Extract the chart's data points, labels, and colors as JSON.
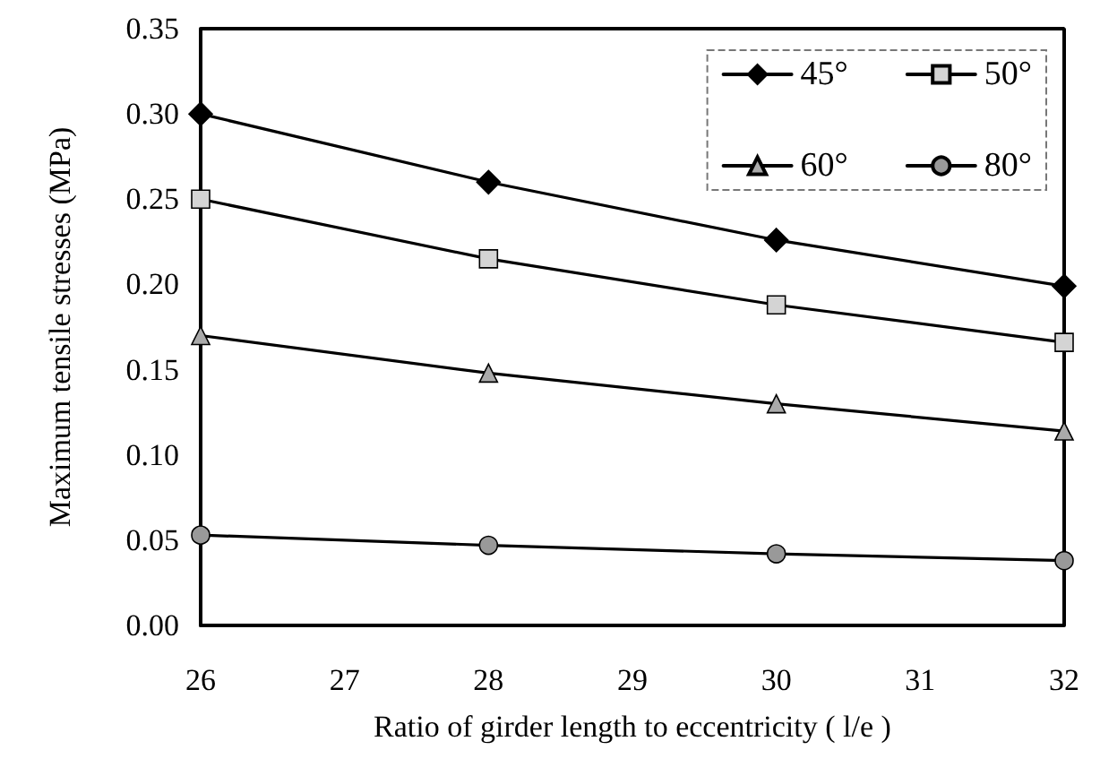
{
  "chart_data": {
    "type": "line",
    "xlabel": "Ratio of girder length to eccentricity ( l/e )",
    "ylabel": "Maximum tensile stresses (MPa)",
    "x": [
      26,
      28,
      30,
      32
    ],
    "xlim": [
      26,
      32
    ],
    "xticks": [
      26,
      27,
      28,
      29,
      30,
      31,
      32
    ],
    "ylim": [
      0,
      0.35
    ],
    "yticks": [
      {
        "value": 0,
        "label": "0.00"
      },
      {
        "value": 0.05,
        "label": "0.05"
      },
      {
        "value": 0.1,
        "label": "0.10"
      },
      {
        "value": 0.15,
        "label": "0.15"
      },
      {
        "value": 0.2,
        "label": "0.20"
      },
      {
        "value": 0.25,
        "label": "0.25"
      },
      {
        "value": 0.3,
        "label": "0.30"
      },
      {
        "value": 0.35,
        "label": "0.35"
      }
    ],
    "grid": false,
    "legend": "top right",
    "line_style": "solid",
    "series": [
      {
        "name": "45°",
        "color": "#000000",
        "marker": "diamond",
        "values": [
          0.3,
          0.26,
          0.226,
          0.199
        ]
      },
      {
        "name": "50°",
        "color": "#d4d4d4",
        "marker": "square",
        "values": [
          0.25,
          0.215,
          0.188,
          0.166
        ]
      },
      {
        "name": "60°",
        "color": "#aaaaaa",
        "marker": "triangle",
        "values": [
          0.17,
          0.148,
          0.13,
          0.114
        ]
      },
      {
        "name": "80°",
        "color": "#999999",
        "marker": "circle",
        "values": [
          0.053,
          0.047,
          0.042,
          0.038
        ]
      }
    ]
  }
}
